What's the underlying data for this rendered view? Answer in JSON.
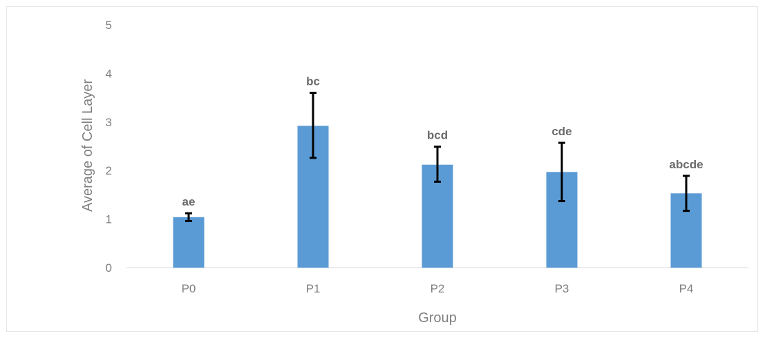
{
  "chart_data": {
    "type": "bar",
    "categories": [
      "P0",
      "P1",
      "P2",
      "P3",
      "P4"
    ],
    "values": [
      1.04,
      2.92,
      2.12,
      1.97,
      1.53
    ],
    "error_bars": {
      "lower": [
        0.96,
        2.26,
        1.77,
        1.37,
        1.17
      ],
      "upper": [
        1.12,
        3.6,
        2.49,
        2.57,
        1.89
      ]
    },
    "significance_labels": [
      "ae",
      "bc",
      "bcd",
      "cde",
      "abcde"
    ],
    "xlabel": "Group",
    "ylabel": "Average of Cell Layer",
    "ylim": [
      0,
      5
    ],
    "yticks": [
      0,
      1,
      2,
      3,
      4,
      5
    ],
    "grid": false,
    "legend": "none",
    "colors": {
      "bar": "#5b9bd5",
      "error_bar": "#000000",
      "axis": "#d9d9d9"
    }
  }
}
